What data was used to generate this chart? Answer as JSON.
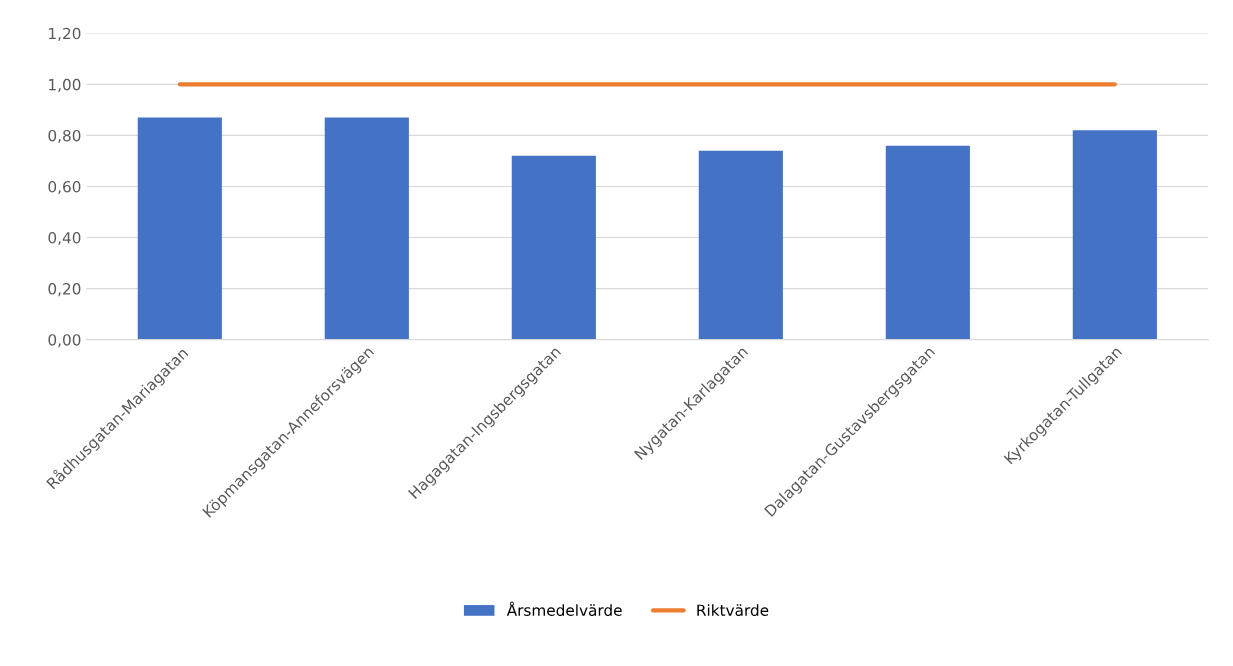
{
  "chart_data": {
    "type": "bar",
    "categories": [
      "Rådhusgatan-Mariagatan",
      "Köpmansgatan-Anneforsvägen",
      "Hagagatan-Ingsbergsgatan",
      "Nygatan-Karlagatan",
      "Dalagatan-Gustavsbergsgatan",
      "Kyrkogatan-Tullgatan"
    ],
    "series": [
      {
        "name": "Årsmedelvärde",
        "color": "#4472c4",
        "values": [
          0.87,
          0.87,
          0.72,
          0.74,
          0.76,
          0.82
        ]
      },
      {
        "name": "Riktvärde",
        "type": "line",
        "color": "#ed7d31",
        "values": [
          1.0,
          1.0,
          1.0,
          1.0,
          1.0,
          1.0
        ]
      }
    ],
    "ylim": [
      0,
      1.2
    ],
    "yticks": [
      {
        "value": 0,
        "label": "0,00"
      },
      {
        "value": 0.2,
        "label": "0,20"
      },
      {
        "value": 0.4,
        "label": "0,40"
      },
      {
        "value": 0.6,
        "label": "0,60"
      },
      {
        "value": 0.8,
        "label": "0,80"
      },
      {
        "value": 1.0,
        "label": "1,00"
      },
      {
        "value": 1.2,
        "label": "1,20"
      }
    ],
    "grid": "y",
    "legend": "bottom"
  }
}
